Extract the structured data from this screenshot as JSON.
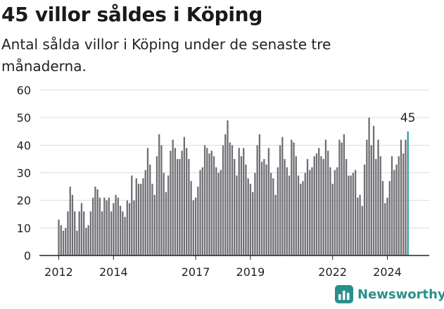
{
  "title": "45 villor såldes i Köping",
  "subtitle": "Antal sålda villor i Köping under de senaste tre månaderna.",
  "brand": {
    "name": "Newsworthy",
    "icon": "newsworthy-logo-icon",
    "color": "#2a8f8c"
  },
  "colors": {
    "bar": "#6e6e73",
    "highlight": "#2aa198",
    "grid": "#dcdcdc",
    "axis": "#222222"
  },
  "chart_data": {
    "type": "bar",
    "title": "45 villor såldes i Köping",
    "xlabel": "",
    "ylabel": "",
    "ylim": [
      0,
      60
    ],
    "yticks": [
      0,
      10,
      20,
      30,
      40,
      50,
      60
    ],
    "xticks": [
      "2012",
      "2014",
      "2017",
      "2019",
      "2022",
      "2024"
    ],
    "xtick_positions": [
      0,
      24,
      60,
      84,
      120,
      144
    ],
    "series": [
      {
        "name": "Antal sålda villor",
        "start": "2012-01",
        "values": [
          13,
          11,
          9,
          10,
          16,
          25,
          22,
          16,
          9,
          16,
          19,
          16,
          10,
          11,
          16,
          21,
          25,
          24,
          21,
          16,
          21,
          20,
          21,
          16,
          19,
          22,
          21,
          18,
          16,
          14,
          20,
          19,
          29,
          20,
          28,
          26,
          26,
          28,
          31,
          39,
          33,
          26,
          22,
          36,
          44,
          40,
          30,
          23,
          29,
          38,
          42,
          39,
          35,
          35,
          38,
          43,
          39,
          35,
          27,
          20,
          21,
          25,
          31,
          32,
          40,
          39,
          37,
          38,
          36,
          32,
          30,
          31,
          40,
          44,
          49,
          41,
          40,
          35,
          29,
          39,
          36,
          39,
          33,
          28,
          26,
          23,
          30,
          40,
          44,
          34,
          35,
          33,
          39,
          30,
          28,
          22,
          32,
          40,
          43,
          35,
          32,
          29,
          42,
          41,
          36,
          29,
          26,
          27,
          30,
          35,
          31,
          32,
          36,
          37,
          39,
          36,
          35,
          42,
          38,
          32,
          26,
          31,
          32,
          42,
          41,
          44,
          35,
          29,
          29,
          30,
          31,
          21,
          22,
          18,
          33,
          42,
          50,
          40,
          47,
          35,
          42,
          36,
          27,
          19,
          21,
          27,
          36,
          31,
          33,
          36,
          42,
          37,
          42,
          45
        ]
      }
    ],
    "last_value_label": "45"
  }
}
